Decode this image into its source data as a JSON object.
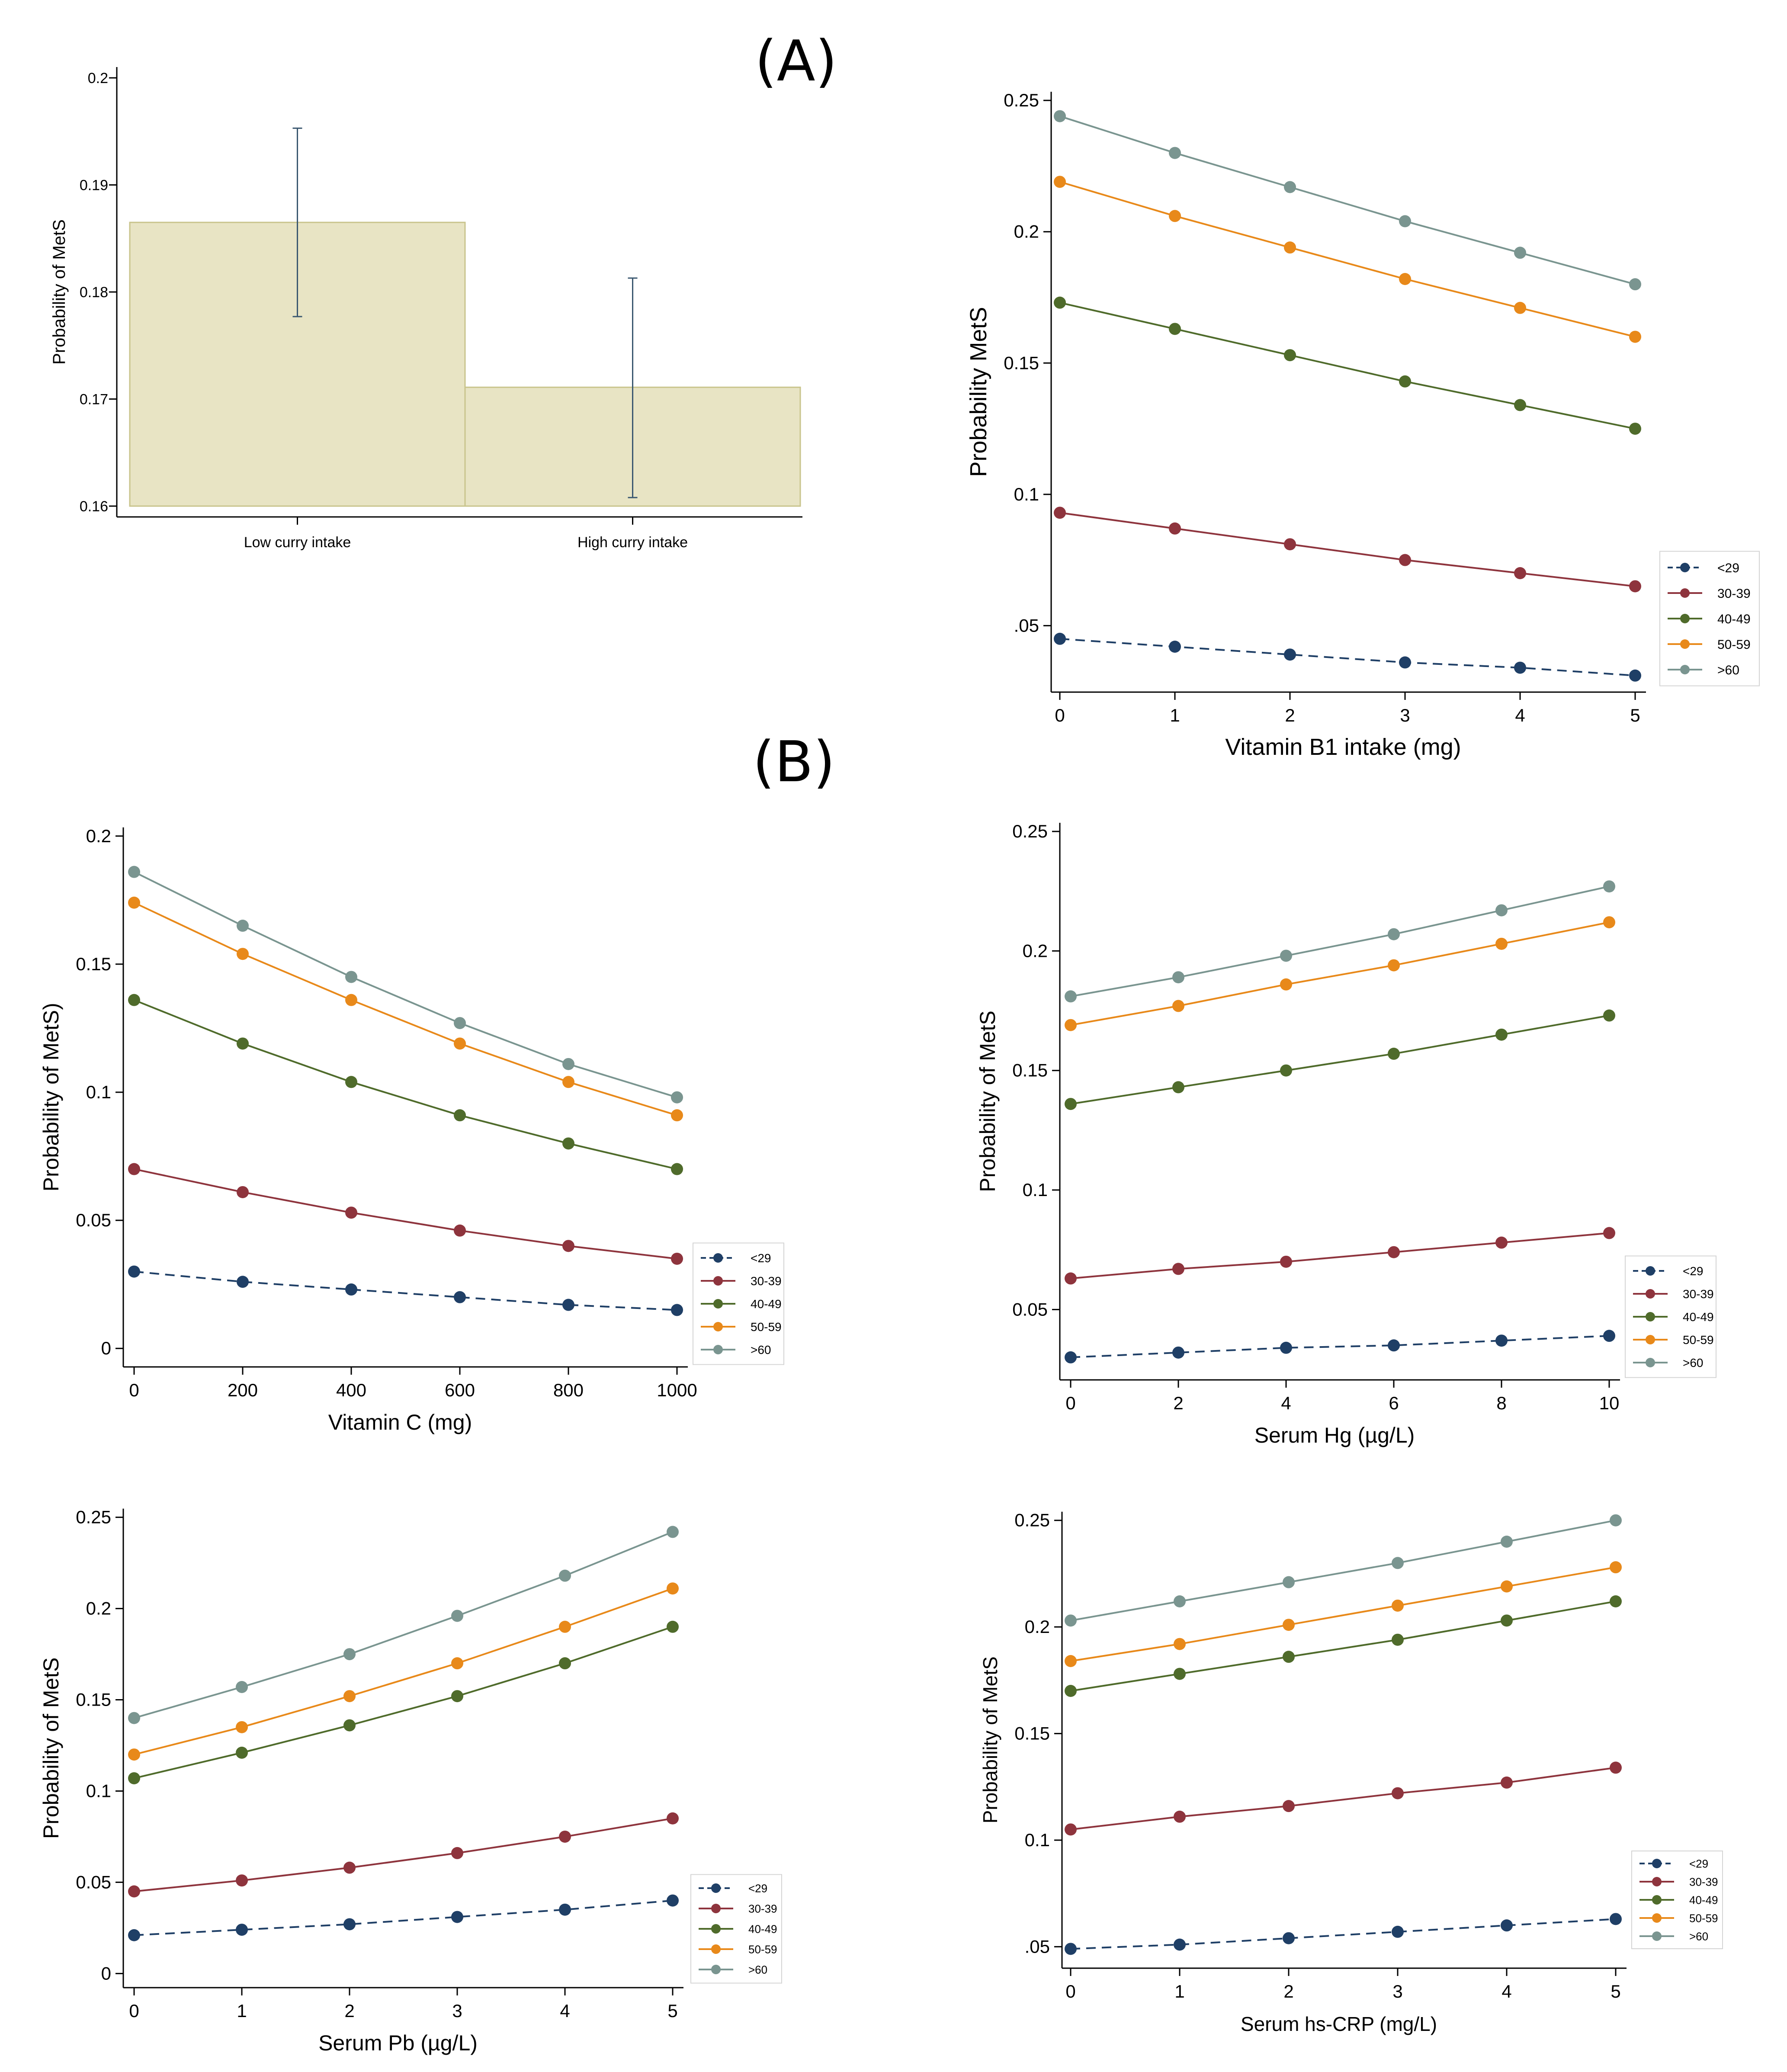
{
  "panel_labels": {
    "a": "(A)",
    "b": "(B)"
  },
  "colors": {
    "bar_fill": "#e8e4c4",
    "bar_stroke": "#c9c48c",
    "errorbar": "#3b5870",
    "series": {
      "<29": "#1f3f66",
      "30-39": "#8e343d",
      "40-49": "#4f6b2b",
      "50-59": "#e8891a",
      ">60": "#7a9590"
    }
  },
  "chart_data": [
    {
      "id": "curry",
      "type": "bar",
      "title": "",
      "xlabel": "",
      "ylabel": "Probability of MetS",
      "categories": [
        "Low curry intake",
        "High curry intake"
      ],
      "values": [
        0.1865,
        0.1711
      ],
      "ci_low": [
        0.1777,
        0.1608
      ],
      "ci_high": [
        0.1953,
        0.1813
      ],
      "ylim": [
        0.16,
        0.2
      ],
      "yticks": [
        0.16,
        0.17,
        0.18,
        0.19,
        0.2
      ],
      "ytick_labels": [
        "0.16",
        "0.17",
        "0.18",
        "0.19",
        "0.2"
      ],
      "baseline": 0.16
    },
    {
      "id": "vitb1",
      "type": "line",
      "xlabel": "Vitamin B1 intake (mg)",
      "ylabel": "Probability  MetS",
      "x": [
        0,
        1,
        2,
        3,
        4,
        5
      ],
      "xticks": [
        0,
        1,
        2,
        3,
        4,
        5
      ],
      "xtick_labels": [
        "0",
        "1",
        "2",
        "3",
        "4",
        "5"
      ],
      "xlim": [
        0,
        5
      ],
      "yticks": [
        0.05,
        0.1,
        0.15,
        0.2,
        0.25
      ],
      "ytick_labels": [
        ".05",
        "0.1",
        "0.15",
        "0.2",
        "0.25"
      ],
      "ylim": [
        0.028,
        0.252
      ],
      "legend": "right",
      "series": [
        {
          "name": "<29",
          "dashed": true,
          "values": [
            0.045,
            0.042,
            0.039,
            0.036,
            0.034,
            0.031
          ]
        },
        {
          "name": "30-39",
          "values": [
            0.093,
            0.087,
            0.081,
            0.075,
            0.07,
            0.065
          ]
        },
        {
          "name": "40-49",
          "values": [
            0.173,
            0.163,
            0.153,
            0.143,
            0.134,
            0.125
          ]
        },
        {
          "name": "50-59",
          "values": [
            0.219,
            0.206,
            0.194,
            0.182,
            0.171,
            0.16
          ]
        },
        {
          "name": ">60",
          "values": [
            0.244,
            0.23,
            0.217,
            0.204,
            0.192,
            0.18
          ]
        }
      ]
    },
    {
      "id": "vitc",
      "type": "line",
      "xlabel": "Vitamin C (mg)",
      "ylabel": "Probability of MetS)",
      "x": [
        0,
        200,
        400,
        600,
        800,
        1000
      ],
      "xticks": [
        0,
        200,
        400,
        600,
        800,
        1000
      ],
      "xtick_labels": [
        "0",
        "200",
        "400",
        "600",
        "800",
        "1000"
      ],
      "xlim": [
        0,
        1000
      ],
      "yticks": [
        0,
        0.05,
        0.1,
        0.15,
        0.2
      ],
      "ytick_labels": [
        "0",
        "0.05",
        "0.1",
        "0.15",
        "0.2"
      ],
      "ylim": [
        -0.003,
        0.203
      ],
      "legend": "right",
      "series": [
        {
          "name": "<29",
          "dashed": true,
          "values": [
            0.03,
            0.026,
            0.023,
            0.02,
            0.017,
            0.015
          ]
        },
        {
          "name": "30-39",
          "values": [
            0.07,
            0.061,
            0.053,
            0.046,
            0.04,
            0.035
          ]
        },
        {
          "name": "40-49",
          "values": [
            0.136,
            0.119,
            0.104,
            0.091,
            0.08,
            0.07
          ]
        },
        {
          "name": "50-59",
          "values": [
            0.174,
            0.154,
            0.136,
            0.119,
            0.104,
            0.091
          ]
        },
        {
          "name": ">60",
          "values": [
            0.186,
            0.165,
            0.145,
            0.127,
            0.111,
            0.098
          ]
        }
      ]
    },
    {
      "id": "hg",
      "type": "line",
      "xlabel": "Serum Hg (µg/L)",
      "ylabel": "Probability of MetS",
      "x": [
        0,
        2,
        4,
        6,
        8,
        10
      ],
      "xticks": [
        0,
        2,
        4,
        6,
        8,
        10
      ],
      "xtick_labels": [
        "0",
        "2",
        "4",
        "6",
        "8",
        "10"
      ],
      "xlim": [
        0,
        10
      ],
      "yticks": [
        0.05,
        0.1,
        0.15,
        0.2,
        0.25
      ],
      "ytick_labels": [
        "0.05",
        "0.1",
        "0.15",
        "0.2",
        "0.25"
      ],
      "ylim": [
        0.026,
        0.254
      ],
      "legend": "right",
      "series": [
        {
          "name": "<29",
          "dashed": true,
          "values": [
            0.03,
            0.032,
            0.034,
            0.035,
            0.037,
            0.039
          ]
        },
        {
          "name": "30-39",
          "values": [
            0.063,
            0.067,
            0.07,
            0.074,
            0.078,
            0.082
          ]
        },
        {
          "name": "40-49",
          "values": [
            0.136,
            0.143,
            0.15,
            0.157,
            0.165,
            0.173
          ]
        },
        {
          "name": "50-59",
          "values": [
            0.169,
            0.177,
            0.186,
            0.194,
            0.203,
            0.212
          ]
        },
        {
          "name": ">60",
          "values": [
            0.181,
            0.189,
            0.198,
            0.207,
            0.217,
            0.227
          ]
        }
      ]
    },
    {
      "id": "pb",
      "type": "line",
      "xlabel": "Serum Pb (µg/L)",
      "ylabel": "Probability of MetS",
      "x": [
        0,
        1,
        2,
        3,
        4,
        5
      ],
      "xticks": [
        0,
        1,
        2,
        3,
        4,
        5
      ],
      "xtick_labels": [
        "0",
        "1",
        "2",
        "3",
        "4",
        "5"
      ],
      "xlim": [
        0,
        5
      ],
      "yticks": [
        0,
        0.05,
        0.1,
        0.15,
        0.2,
        0.25
      ],
      "ytick_labels": [
        "0",
        "0.05",
        "0.1",
        "0.15",
        "0.2",
        "0.25"
      ],
      "ylim": [
        -0.003,
        0.253
      ],
      "legend": "right",
      "series": [
        {
          "name": "<29",
          "dashed": true,
          "values": [
            0.021,
            0.024,
            0.027,
            0.031,
            0.035,
            0.04
          ]
        },
        {
          "name": "30-39",
          "values": [
            0.045,
            0.051,
            0.058,
            0.066,
            0.075,
            0.085
          ]
        },
        {
          "name": "40-49",
          "values": [
            0.107,
            0.121,
            0.136,
            0.152,
            0.17,
            0.19
          ]
        },
        {
          "name": "50-59",
          "values": [
            0.12,
            0.135,
            0.152,
            0.17,
            0.19,
            0.211
          ]
        },
        {
          "name": ">60",
          "values": [
            0.14,
            0.157,
            0.175,
            0.196,
            0.218,
            0.242
          ]
        }
      ]
    },
    {
      "id": "crp",
      "type": "line",
      "xlabel": "Serum hs-CRP (mg/L)",
      "ylabel": "Probability of MetS",
      "x": [
        0,
        1,
        2,
        3,
        4,
        5
      ],
      "xticks": [
        0,
        1,
        2,
        3,
        4,
        5
      ],
      "xtick_labels": [
        "0",
        "1",
        "2",
        "3",
        "4",
        "5"
      ],
      "xlim": [
        0,
        5
      ],
      "yticks": [
        0.05,
        0.1,
        0.15,
        0.2,
        0.25
      ],
      "ytick_labels": [
        ".05",
        "0.1",
        "0.15",
        "0.2",
        "0.25"
      ],
      "ylim": [
        0.044,
        0.254
      ],
      "legend": "right",
      "series": [
        {
          "name": "<29",
          "dashed": true,
          "values": [
            0.049,
            0.051,
            0.054,
            0.057,
            0.06,
            0.063
          ]
        },
        {
          "name": "30-39",
          "values": [
            0.105,
            0.111,
            0.116,
            0.122,
            0.127,
            0.134
          ]
        },
        {
          "name": "40-49",
          "values": [
            0.17,
            0.178,
            0.186,
            0.194,
            0.203,
            0.212
          ]
        },
        {
          "name": "50-59",
          "values": [
            0.184,
            0.192,
            0.201,
            0.21,
            0.219,
            0.228
          ]
        },
        {
          "name": ">60",
          "values": [
            0.203,
            0.212,
            0.221,
            0.23,
            0.24,
            0.25
          ]
        }
      ]
    }
  ]
}
